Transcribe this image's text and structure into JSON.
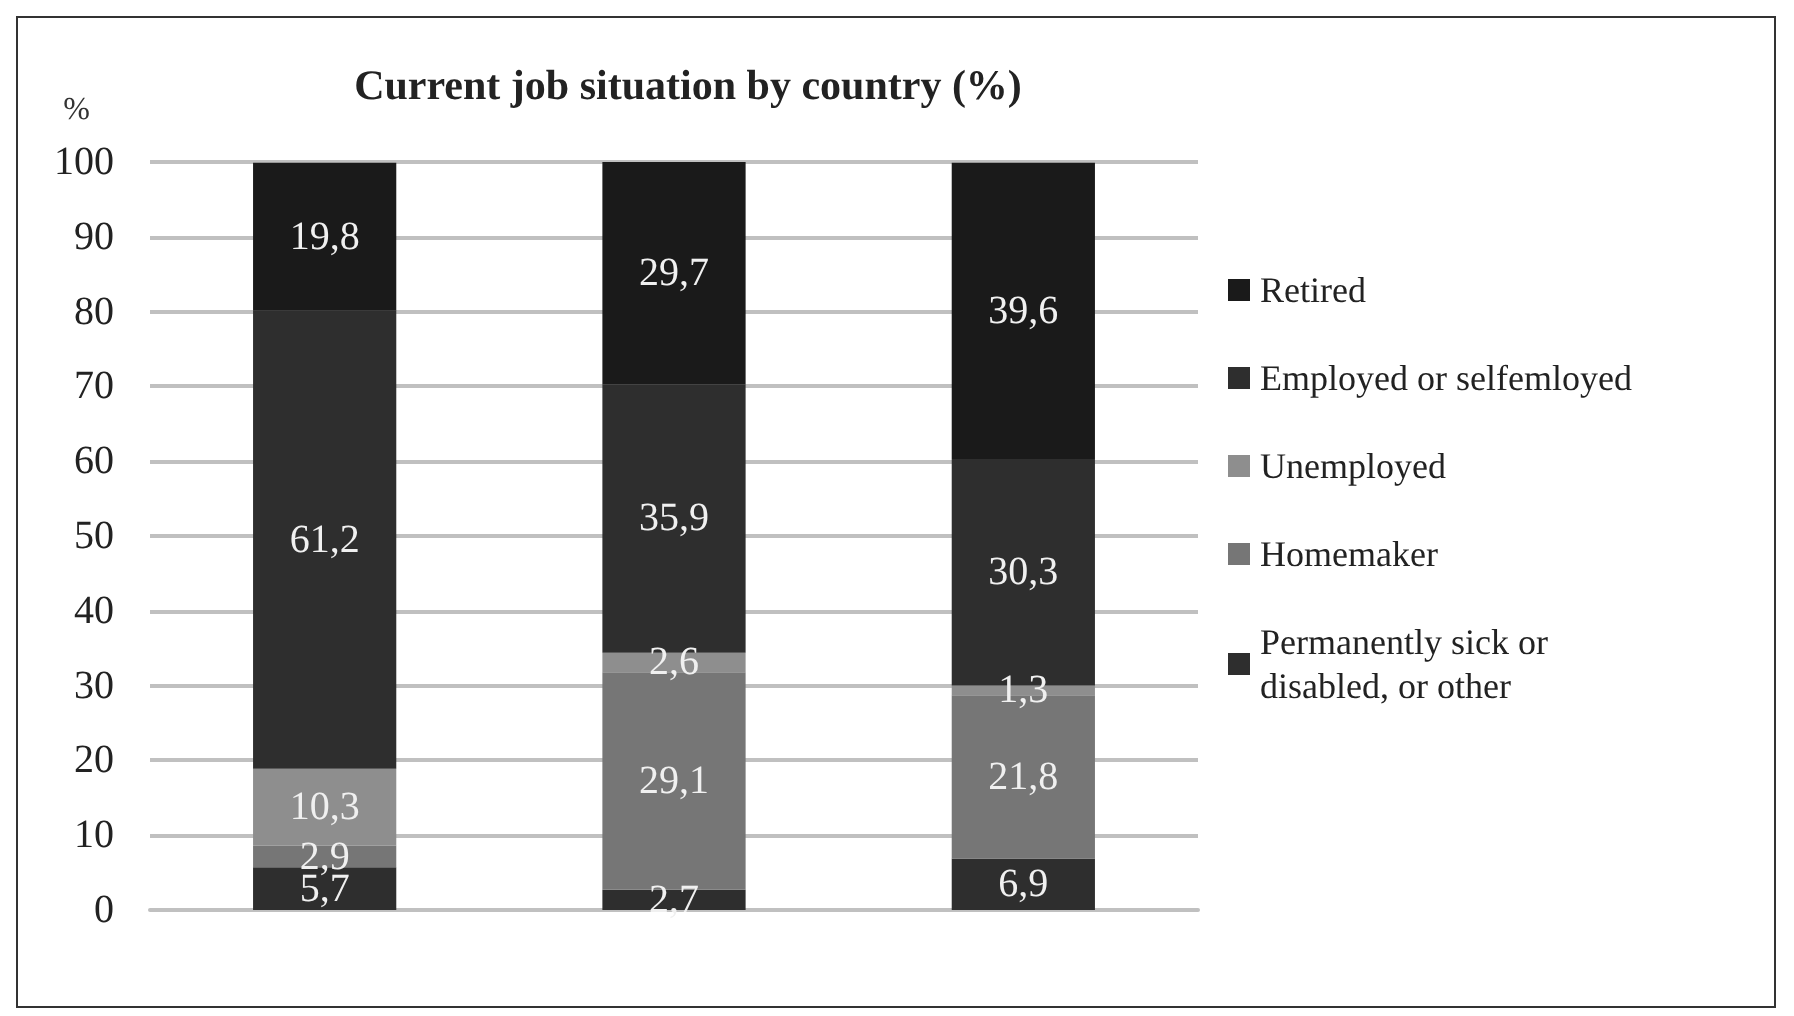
{
  "chart_data": {
    "type": "bar",
    "title": "Current job situation by country (%)",
    "ylabel": "%",
    "categories": [
      null,
      null,
      null
    ],
    "stacked": true,
    "ylim": [
      0,
      100
    ],
    "yticks": [
      0,
      10,
      20,
      30,
      40,
      50,
      60,
      70,
      80,
      90,
      100
    ],
    "grid": "y",
    "legend": "right",
    "series": [
      {
        "name": "Permanently sick or disabled, or other",
        "color": "#2e2e2e",
        "values": [
          5.7,
          2.7,
          6.9
        ],
        "value_labels": [
          "5,7",
          "2,7",
          "6,9"
        ]
      },
      {
        "name": "Homemaker",
        "color": "#767676",
        "values": [
          2.9,
          29.1,
          21.8
        ],
        "value_labels": [
          "2,9",
          "29,1",
          "21,8"
        ]
      },
      {
        "name": "Unemployed",
        "color": "#8e8e8e",
        "values": [
          10.3,
          2.6,
          1.3
        ],
        "value_labels": [
          "10,3",
          "2,6",
          "1,3"
        ]
      },
      {
        "name": "Employed or selfemloyed",
        "color": "#2e2e2e",
        "values": [
          61.2,
          35.9,
          30.3
        ],
        "value_labels": [
          "61,2",
          "35,9",
          "30,3"
        ]
      },
      {
        "name": "Retired",
        "color": "#1a1a1a",
        "values": [
          19.8,
          29.7,
          39.6
        ],
        "value_labels": [
          "19,8",
          "29,7",
          "39,6"
        ]
      }
    ]
  }
}
